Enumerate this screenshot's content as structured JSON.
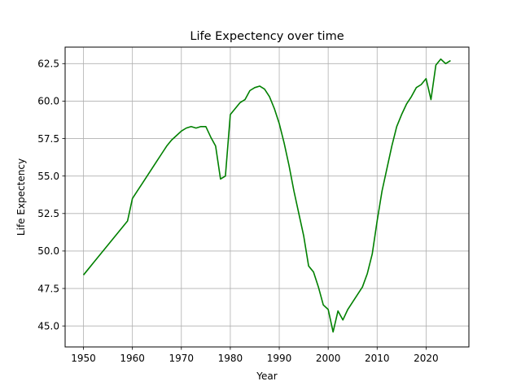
{
  "chart_data": {
    "type": "line",
    "title": "Life Expectency over time",
    "xlabel": "Year",
    "ylabel": "Life Expectency",
    "xlim": [
      1946.25,
      2028.75
    ],
    "ylim": [
      43.6,
      63.6
    ],
    "xticks": [
      1950,
      1960,
      1970,
      1980,
      1990,
      2000,
      2010,
      2020
    ],
    "xtick_labels": [
      "1950",
      "1960",
      "1970",
      "1980",
      "1990",
      "2000",
      "2010",
      "2020"
    ],
    "yticks": [
      45.0,
      47.5,
      50.0,
      52.5,
      55.0,
      57.5,
      60.0,
      62.5
    ],
    "ytick_labels": [
      "45.0",
      "47.5",
      "50.0",
      "52.5",
      "55.0",
      "57.5",
      "60.0",
      "62.5"
    ],
    "grid": true,
    "series": [
      {
        "color": "#008000",
        "x": [
          1950,
          1951,
          1952,
          1953,
          1954,
          1955,
          1956,
          1957,
          1958,
          1959,
          1960,
          1961,
          1962,
          1963,
          1964,
          1965,
          1966,
          1967,
          1968,
          1969,
          1970,
          1971,
          1972,
          1973,
          1974,
          1975,
          1976,
          1977,
          1978,
          1979,
          1980,
          1981,
          1982,
          1983,
          1984,
          1985,
          1986,
          1987,
          1988,
          1989,
          1990,
          1991,
          1992,
          1993,
          1994,
          1995,
          1996,
          1997,
          1998,
          1999,
          2000,
          2001,
          2002,
          2003,
          2004,
          2005,
          2006,
          2007,
          2008,
          2009,
          2010,
          2011,
          2012,
          2013,
          2014,
          2015,
          2016,
          2017,
          2018,
          2019,
          2020,
          2021,
          2022,
          2023,
          2024,
          2025
        ],
        "values": [
          48.4,
          48.8,
          49.2,
          49.6,
          50.0,
          50.4,
          50.8,
          51.2,
          51.6,
          52.0,
          53.5,
          54.0,
          54.5,
          55.0,
          55.5,
          56.0,
          56.5,
          57.0,
          57.4,
          57.7,
          58.0,
          58.2,
          58.3,
          58.2,
          58.3,
          58.3,
          57.6,
          57.0,
          54.8,
          55.0,
          59.1,
          59.5,
          59.9,
          60.1,
          60.7,
          60.9,
          61.0,
          60.8,
          60.3,
          59.5,
          58.5,
          57.2,
          55.7,
          54.0,
          52.5,
          51.0,
          49.0,
          48.6,
          47.6,
          46.4,
          46.1,
          44.6,
          46.0,
          45.4,
          46.1,
          46.6,
          47.1,
          47.6,
          48.5,
          49.8,
          52.0,
          54.0,
          55.5,
          57.0,
          58.3,
          59.1,
          59.8,
          60.3,
          60.9,
          61.1,
          61.5,
          60.1,
          62.4,
          62.8,
          62.5,
          62.7
        ]
      }
    ]
  }
}
